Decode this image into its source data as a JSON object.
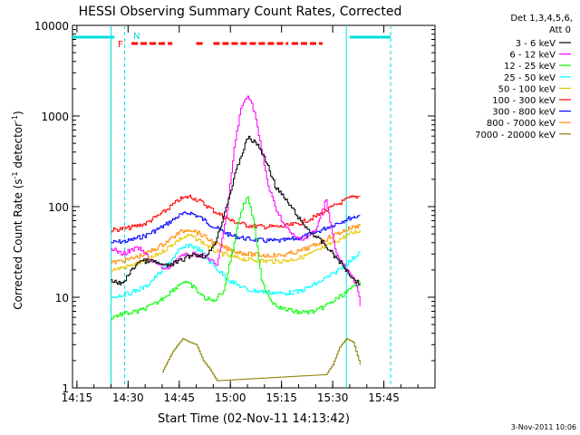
{
  "chart_data": {
    "type": "line",
    "title": "HESSI Observing Summary Count Rates, Corrected",
    "xlabel": "Start Time (02-Nov-11 14:13:42)",
    "ylabel_main": "Corrected Count Rate (s",
    "ylabel_sup1": "-1",
    "ylabel_mid": " detector",
    "ylabel_sup2": "-1",
    "ylabel_end": ")",
    "footer": "3-Nov-2011 10:06",
    "y_scale": "log",
    "ylim": [
      1,
      10000
    ],
    "xlim": [
      "14:13:42",
      "16:00:00"
    ],
    "x_ticks": [
      "14:15",
      "14:30",
      "14:45",
      "15:00",
      "15:15",
      "15:30",
      "15:45"
    ],
    "y_ticks": [
      "1",
      "10",
      "100",
      "1000",
      "10000"
    ],
    "legend_header": [
      "Det 1,3,4,5,6,",
      "Att 0"
    ],
    "legend_position": "right",
    "markers": {
      "N": "N",
      "F": "F",
      "night_segments": [
        [
          "14:13:42",
          "14:26"
        ],
        [
          "15:35",
          "15:47"
        ]
      ],
      "flare_flag_segments": [
        [
          "14:31",
          "14:43"
        ],
        [
          "14:50",
          "14:52"
        ],
        [
          "14:55",
          "15:17"
        ],
        [
          "15:18",
          "15:27"
        ]
      ],
      "vertical_lines_solid": [
        "14:25",
        "15:34"
      ],
      "vertical_lines_dashed": [
        "14:29",
        "15:47"
      ]
    },
    "series": [
      {
        "name": "3 - 6 keV",
        "color": "#000000",
        "x": [
          "14:25",
          "14:28",
          "14:33",
          "14:37",
          "14:41",
          "14:45",
          "14:49",
          "14:53",
          "14:56",
          "14:59",
          "15:02",
          "15:05",
          "15:08",
          "15:11",
          "15:13",
          "15:16",
          "15:19",
          "15:21",
          "15:24",
          "15:27",
          "15:30",
          "15:33",
          "15:36",
          "15:38"
        ],
        "values": [
          15,
          14,
          25,
          25,
          22,
          25,
          30,
          28,
          45,
          110,
          280,
          580,
          480,
          280,
          170,
          120,
          85,
          65,
          50,
          40,
          30,
          22,
          16,
          14
        ]
      },
      {
        "name": "6 - 12 keV",
        "color": "#ff00ff",
        "x": [
          "14:25",
          "14:28",
          "14:33",
          "14:37",
          "14:41",
          "14:45",
          "14:49",
          "14:53",
          "14:56",
          "14:59",
          "15:01",
          "15:03",
          "15:05",
          "15:07",
          "15:09",
          "15:11",
          "15:13",
          "15:16",
          "15:19",
          "15:22",
          "15:25",
          "15:28",
          "15:31",
          "15:34",
          "15:37",
          "15:38"
        ],
        "values": [
          35,
          30,
          35,
          25,
          20,
          28,
          30,
          28,
          22,
          90,
          450,
          1200,
          1750,
          1100,
          420,
          170,
          100,
          60,
          45,
          45,
          55,
          120,
          30,
          20,
          14,
          8
        ]
      },
      {
        "name": "12 - 25 keV",
        "color": "#00ff00",
        "x": [
          "14:25",
          "14:28",
          "14:33",
          "14:38",
          "14:43",
          "14:46",
          "14:49",
          "14:52",
          "14:55",
          "14:58",
          "15:01",
          "15:03",
          "15:05",
          "15:07",
          "15:09",
          "15:12",
          "15:15",
          "15:20",
          "15:25",
          "15:30",
          "15:35",
          "15:38"
        ],
        "values": [
          6,
          6.5,
          7,
          8.5,
          12,
          15,
          13,
          10,
          9,
          12,
          40,
          90,
          130,
          60,
          15,
          9,
          7.5,
          6.8,
          7,
          9,
          12,
          15
        ]
      },
      {
        "name": "25 - 50 keV",
        "color": "#00ffff",
        "x": [
          "14:25",
          "14:30",
          "14:35",
          "14:40",
          "14:45",
          "14:48",
          "14:51",
          "14:55",
          "15:00",
          "15:05",
          "15:10",
          "15:15",
          "15:20",
          "15:25",
          "15:30",
          "15:35",
          "15:38"
        ],
        "values": [
          10,
          11,
          13,
          20,
          33,
          38,
          33,
          22,
          15,
          12,
          11.5,
          11,
          11.5,
          14,
          18,
          25,
          32
        ]
      },
      {
        "name": "50 - 100 keV",
        "color": "#e6c800",
        "x": [
          "14:25",
          "14:30",
          "14:35",
          "14:40",
          "14:45",
          "14:48",
          "14:51",
          "14:55",
          "15:00",
          "15:05",
          "15:10",
          "15:15",
          "15:20",
          "15:25",
          "15:30",
          "15:35",
          "15:38"
        ],
        "values": [
          20,
          22,
          25,
          32,
          44,
          48,
          42,
          33,
          28,
          26,
          25,
          25,
          27,
          32,
          40,
          50,
          55
        ]
      },
      {
        "name": "100 - 300 keV",
        "color": "#ff0000",
        "x": [
          "14:25",
          "14:30",
          "14:35",
          "14:40",
          "14:45",
          "14:48",
          "14:51",
          "14:55",
          "15:00",
          "15:05",
          "15:10",
          "15:15",
          "15:20",
          "15:25",
          "15:30",
          "15:35",
          "15:38"
        ],
        "values": [
          55,
          58,
          65,
          85,
          120,
          130,
          115,
          90,
          70,
          62,
          60,
          60,
          65,
          78,
          100,
          125,
          130
        ]
      },
      {
        "name": "300 - 800 keV",
        "color": "#0000ff",
        "x": [
          "14:25",
          "14:30",
          "14:35",
          "14:40",
          "14:45",
          "14:48",
          "14:51",
          "14:55",
          "15:00",
          "15:05",
          "15:10",
          "15:15",
          "15:20",
          "15:25",
          "15:30",
          "15:35",
          "15:38"
        ],
        "values": [
          40,
          42,
          48,
          60,
          80,
          86,
          76,
          60,
          48,
          44,
          42,
          42,
          45,
          52,
          63,
          75,
          80
        ]
      },
      {
        "name": "800 - 7000 keV",
        "color": "#ff8c00",
        "x": [
          "14:25",
          "14:30",
          "14:35",
          "14:40",
          "14:45",
          "14:48",
          "14:51",
          "14:55",
          "15:00",
          "15:05",
          "15:10",
          "15:15",
          "15:20",
          "15:25",
          "15:30",
          "15:35",
          "15:38"
        ],
        "values": [
          24,
          26,
          30,
          38,
          52,
          57,
          50,
          40,
          33,
          30,
          29,
          29,
          32,
          38,
          48,
          58,
          62
        ]
      },
      {
        "name": "7000 - 20000 keV",
        "color": "#8b8000",
        "x": [
          "14:40",
          "14:43",
          "14:46",
          "14:48",
          "14:50",
          "14:52",
          "14:54",
          "14:56",
          "15:28",
          "15:30",
          "15:32",
          "15:34",
          "15:36",
          "15:38"
        ],
        "values": [
          1.5,
          2.5,
          3.5,
          3.2,
          3,
          2,
          1.6,
          1.2,
          1.4,
          1.8,
          2.8,
          3.5,
          3.2,
          1.8
        ]
      }
    ]
  }
}
